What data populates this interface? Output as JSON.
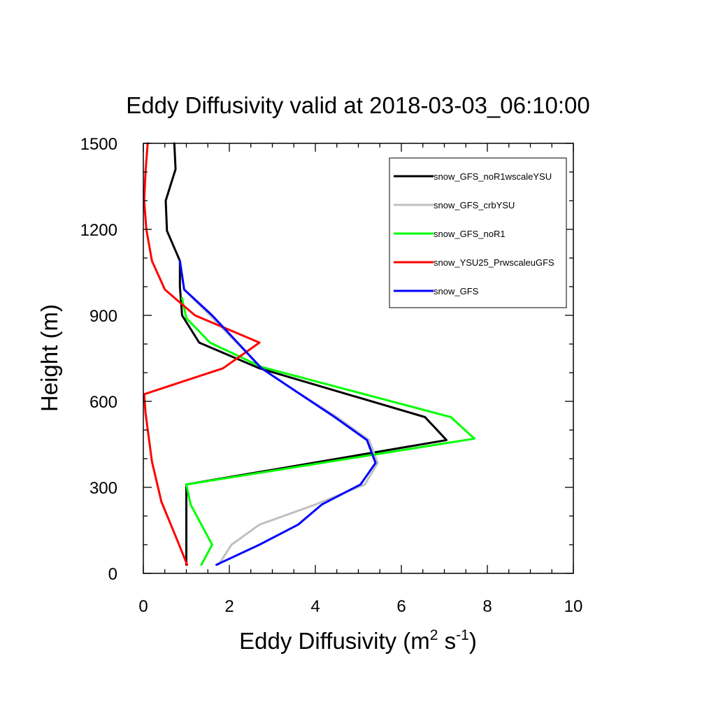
{
  "chart_data": {
    "type": "line",
    "title": "Eddy Diffusivity valid at 2018-03-03_06:10:00",
    "xlabel": "Eddy Diffusivity (m",
    "xlabel_sup1": "2",
    "xlabel_mid": " s",
    "xlabel_sup2": "-1",
    "xlabel_end": ")",
    "ylabel": "Height (m)",
    "xlim": [
      0,
      10
    ],
    "ylim": [
      0,
      1500
    ],
    "xticks": [
      0,
      2,
      4,
      6,
      8,
      10
    ],
    "yticks": [
      0,
      300,
      600,
      900,
      1200,
      1500
    ],
    "xminor": [
      0.5,
      1,
      1.5,
      2.5,
      3,
      3.5,
      4.5,
      5,
      5.5,
      6.5,
      7,
      7.5,
      8.5,
      9,
      9.5
    ],
    "yminor": [
      100,
      200,
      400,
      500,
      700,
      800,
      1000,
      1100,
      1300,
      1400
    ],
    "grid": false,
    "legend_position": "top-right",
    "series": [
      {
        "name": "snow_GFS_noR1wscaleYSU",
        "color": "#000000",
        "points": [
          [
            1.0,
            30
          ],
          [
            1.0,
            100
          ],
          [
            1.0,
            170
          ],
          [
            1.0,
            240
          ],
          [
            1.0,
            310
          ],
          [
            7.05,
            465
          ],
          [
            6.55,
            545
          ],
          [
            2.7,
            715
          ],
          [
            1.3,
            805
          ],
          [
            0.9,
            900
          ],
          [
            0.85,
            1000
          ],
          [
            0.85,
            1090
          ],
          [
            0.55,
            1195
          ],
          [
            0.52,
            1300
          ],
          [
            0.75,
            1410
          ],
          [
            0.72,
            1500
          ]
        ]
      },
      {
        "name": "snow_GFS_crbYSU",
        "color": "#c0c0c0",
        "points": [
          [
            1.75,
            30
          ],
          [
            2.05,
            100
          ],
          [
            2.7,
            170
          ],
          [
            4.0,
            240
          ],
          [
            5.15,
            310
          ],
          [
            5.45,
            385
          ],
          [
            5.25,
            465
          ],
          [
            4.5,
            545
          ],
          [
            3.6,
            630
          ],
          [
            2.75,
            715
          ],
          [
            1.55,
            900
          ],
          [
            0.95,
            990
          ],
          [
            0.85,
            1090
          ]
        ]
      },
      {
        "name": "snow_GFS_noR1",
        "color": "#00ff00",
        "points": [
          [
            1.35,
            30
          ],
          [
            1.6,
            100
          ],
          [
            1.35,
            170
          ],
          [
            1.1,
            240
          ],
          [
            1.0,
            310
          ],
          [
            7.7,
            470
          ],
          [
            7.15,
            545
          ],
          [
            2.75,
            720
          ],
          [
            1.55,
            805
          ],
          [
            1.0,
            890
          ],
          [
            0.9,
            960
          ]
        ]
      },
      {
        "name": "snow_YSU25_PrwscaleuGFS",
        "color": "#ff0000",
        "points": [
          [
            1.02,
            30
          ],
          [
            0.75,
            130
          ],
          [
            0.42,
            250
          ],
          [
            0.2,
            390
          ],
          [
            0.05,
            560
          ],
          [
            0.02,
            625
          ],
          [
            1.85,
            715
          ],
          [
            2.7,
            805
          ],
          [
            1.2,
            900
          ],
          [
            0.5,
            990
          ],
          [
            0.2,
            1090
          ],
          [
            0.07,
            1200
          ],
          [
            0.02,
            1300
          ],
          [
            0.05,
            1400
          ],
          [
            0.1,
            1500
          ]
        ]
      },
      {
        "name": "snow_GFS",
        "color": "#0000ff",
        "points": [
          [
            1.7,
            30
          ],
          [
            2.7,
            100
          ],
          [
            3.6,
            170
          ],
          [
            4.15,
            240
          ],
          [
            5.05,
            310
          ],
          [
            5.4,
            385
          ],
          [
            5.2,
            465
          ],
          [
            4.45,
            545
          ],
          [
            3.6,
            630
          ],
          [
            2.75,
            715
          ],
          [
            1.6,
            900
          ],
          [
            0.95,
            990
          ],
          [
            0.85,
            1090
          ]
        ]
      }
    ]
  }
}
